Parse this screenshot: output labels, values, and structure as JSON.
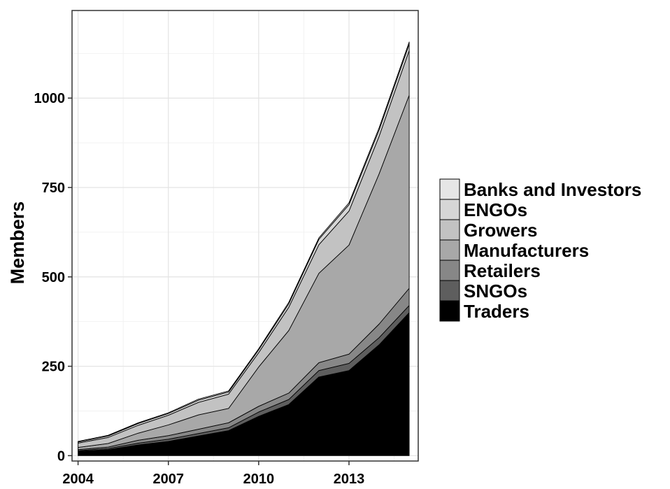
{
  "chart_data": {
    "type": "area",
    "stacked": true,
    "ylabel": "Members",
    "xlabel": "",
    "xlim": [
      2003.8,
      2015.3
    ],
    "ylim": [
      -15,
      1245
    ],
    "x_ticks": [
      2004,
      2007,
      2010,
      2013
    ],
    "y_ticks": [
      0,
      250,
      500,
      750,
      1000
    ],
    "grid": true,
    "legend_position": "right",
    "x": [
      2004,
      2005,
      2006,
      2007,
      2008,
      2009,
      2010,
      2011,
      2012,
      2013,
      2014,
      2015
    ],
    "series": [
      {
        "name": "Traders",
        "color": "#000000",
        "values": [
          12,
          17,
          30,
          40,
          55,
          70,
          110,
          143,
          220,
          238,
          310,
          400
        ]
      },
      {
        "name": "SNGOs",
        "color": "#5e5e5e",
        "values": [
          2,
          3,
          5,
          6,
          7,
          8,
          12,
          14,
          18,
          20,
          20,
          20
        ]
      },
      {
        "name": "Retailers",
        "color": "#878787",
        "values": [
          3,
          4,
          8,
          10,
          12,
          14,
          16,
          18,
          22,
          26,
          38,
          48
        ]
      },
      {
        "name": "Manufacturers",
        "color": "#a8a8a8",
        "values": [
          6,
          10,
          20,
          30,
          40,
          40,
          110,
          175,
          250,
          305,
          420,
          540
        ]
      },
      {
        "name": "Growers",
        "color": "#c2c2c2",
        "values": [
          12,
          17,
          22,
          27,
          35,
          40,
          40,
          65,
          80,
          95,
          105,
          125
        ]
      },
      {
        "name": "ENGOs",
        "color": "#d6d6d6",
        "values": [
          3,
          4,
          5,
          5,
          6,
          6,
          8,
          10,
          15,
          18,
          18,
          18
        ]
      },
      {
        "name": "Banks and Investors",
        "color": "#e6e6e6",
        "values": [
          2,
          2,
          2,
          2,
          3,
          3,
          3,
          4,
          4,
          5,
          6,
          6
        ]
      }
    ],
    "legend_order": [
      "Banks and Investors",
      "ENGOs",
      "Growers",
      "Manufacturers",
      "Retailers",
      "SNGOs",
      "Traders"
    ]
  }
}
